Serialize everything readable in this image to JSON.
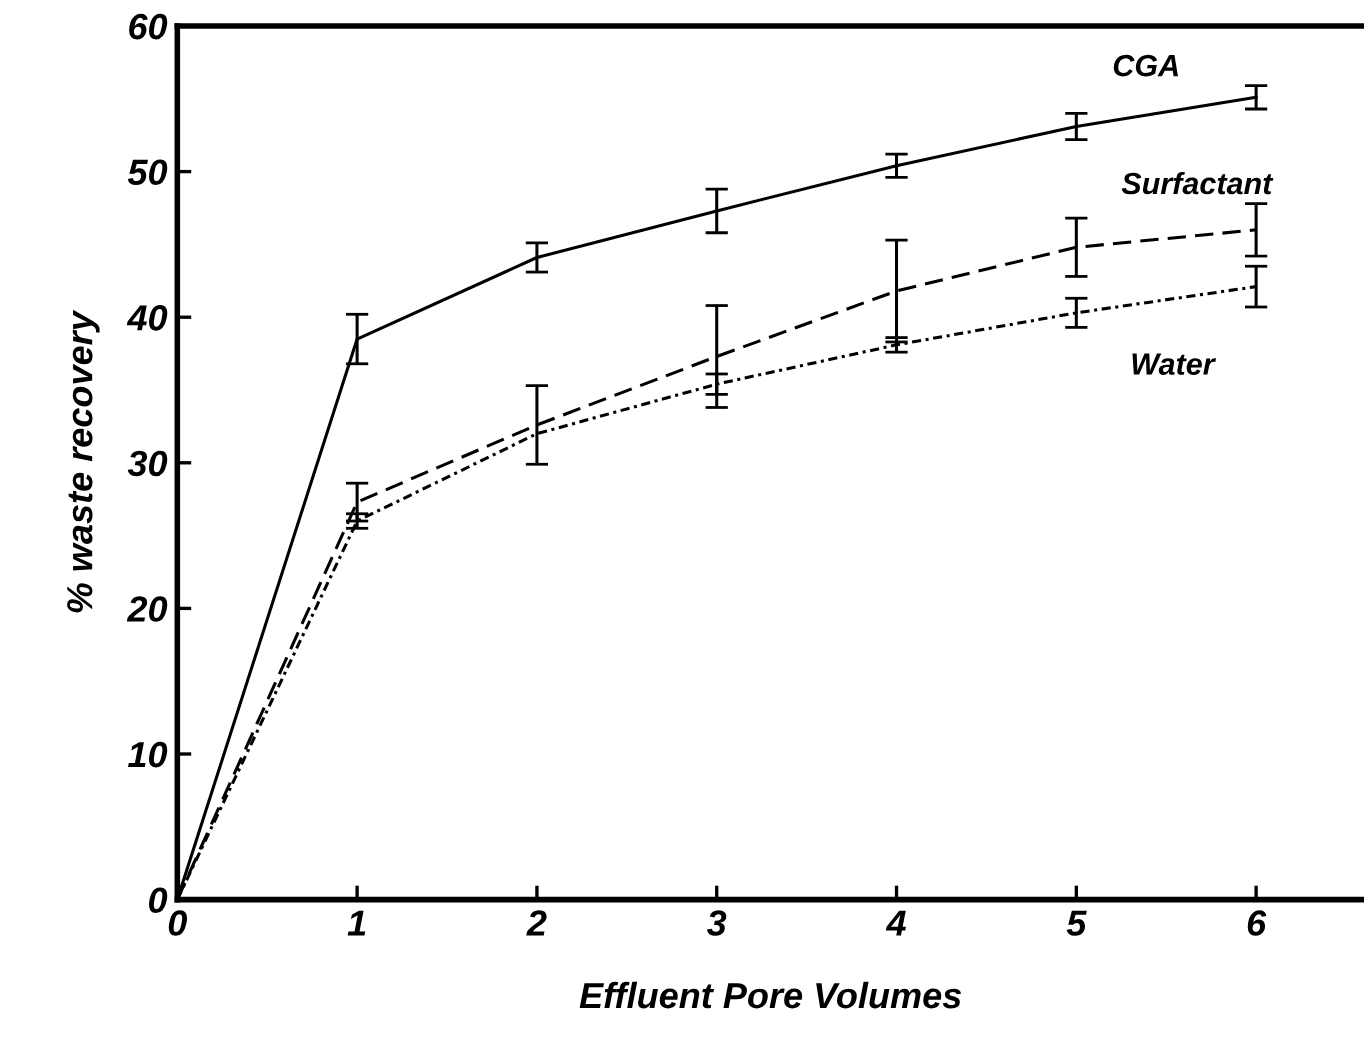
{
  "chart_data": {
    "type": "line",
    "xlabel": "Effluent Pore Volumes",
    "ylabel": "% waste recovery",
    "xlim": [
      0,
      6.6
    ],
    "ylim": [
      0,
      60
    ],
    "xticks": [
      0,
      1,
      2,
      3,
      4,
      5,
      6
    ],
    "yticks": [
      0,
      10,
      20,
      30,
      40,
      50,
      60
    ],
    "x": [
      0,
      1,
      2,
      3,
      4,
      5,
      6
    ],
    "grid": false,
    "legend": false,
    "marker": "none",
    "series": [
      {
        "name": "CGA",
        "color": "#000000",
        "line_style": "solid",
        "values": [
          0,
          38.5,
          44.1,
          47.3,
          50.4,
          53.1,
          55.1
        ],
        "errors": [
          null,
          1.7,
          1.0,
          1.5,
          0.8,
          0.9,
          0.8
        ]
      },
      {
        "name": "Surfactant",
        "color": "#000000",
        "line_style": "dashed",
        "values": [
          0,
          27.3,
          32.6,
          37.3,
          41.8,
          44.8,
          46.0
        ],
        "errors": [
          null,
          1.3,
          2.7,
          3.5,
          3.5,
          2.0,
          1.8
        ]
      },
      {
        "name": "Water",
        "color": "#000000",
        "line_style": "dotted",
        "values": [
          0,
          26.0,
          32.0,
          35.4,
          38.1,
          40.3,
          42.1
        ],
        "errors": [
          null,
          0.5,
          null,
          0.7,
          0.5,
          1.0,
          1.4
        ]
      }
    ]
  }
}
